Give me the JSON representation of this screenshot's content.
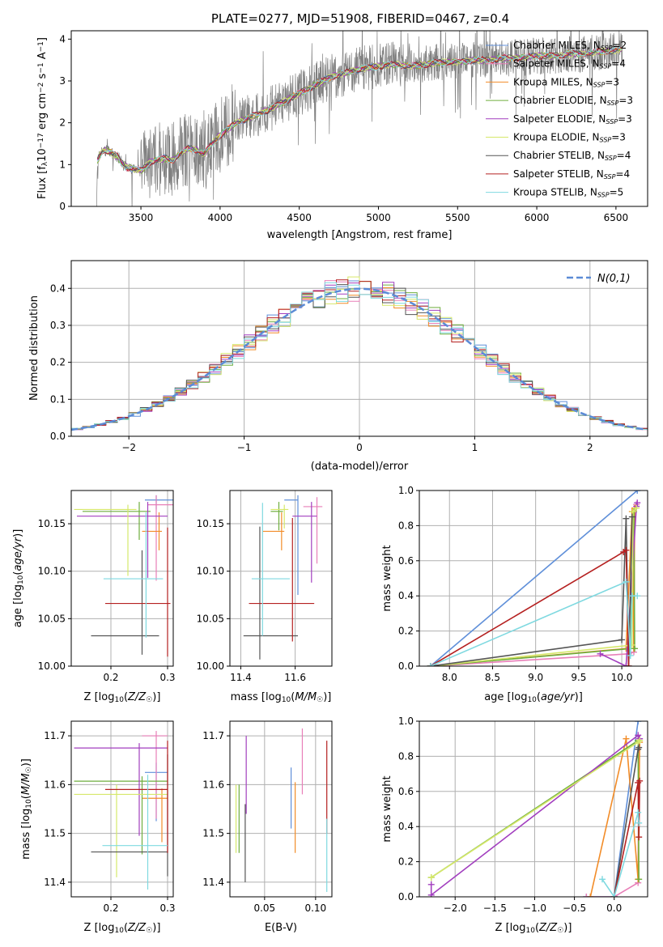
{
  "figure": {
    "title": "PLATE=0277, MJD=51908, FIBERID=0467, z=0.4",
    "series_colors": [
      "#5f8fd9",
      "#e87fb8",
      "#f28c28",
      "#6fae3e",
      "#a23fbf",
      "#d6e86a",
      "#555555",
      "#b52020",
      "#7fd9e0"
    ]
  },
  "chart_data": [
    {
      "id": "spectrum",
      "type": "line",
      "title": "PLATE=0277, MJD=51908, FIBERID=0467, z=0.4",
      "xlabel": "wavelength [Angstrom, rest frame]",
      "ylabel": "Flux [f_λ 10^-17 erg cm^-2 s^-1 A^-1]",
      "xlim": [
        3060,
        6700
      ],
      "ylim": [
        0,
        4.2
      ],
      "xticks": [
        3500,
        4000,
        4500,
        5000,
        5500,
        6000,
        6500
      ],
      "yticks": [
        0,
        1,
        2,
        3,
        4
      ],
      "grid": false,
      "legend_position": "top-right",
      "data_start": 3220,
      "data_end": 6540,
      "continuum": [
        [
          3220,
          0
        ],
        [
          3225,
          1.1
        ],
        [
          3260,
          1.35
        ],
        [
          3300,
          1.3
        ],
        [
          3350,
          1.2
        ],
        [
          3400,
          0.95
        ],
        [
          3450,
          0.9
        ],
        [
          3500,
          0.85
        ],
        [
          3550,
          1.05
        ],
        [
          3600,
          1.1
        ],
        [
          3650,
          1.15
        ],
        [
          3700,
          1.1
        ],
        [
          3800,
          1.4
        ],
        [
          3850,
          1.35
        ],
        [
          3900,
          1.25
        ],
        [
          3950,
          1.5
        ],
        [
          4000,
          1.7
        ],
        [
          4100,
          2.0
        ],
        [
          4200,
          2.15
        ],
        [
          4300,
          2.3
        ],
        [
          4400,
          2.5
        ],
        [
          4500,
          2.7
        ],
        [
          4600,
          2.9
        ],
        [
          4700,
          3.1
        ],
        [
          4800,
          3.2
        ],
        [
          4900,
          3.3
        ],
        [
          5000,
          3.35
        ],
        [
          5100,
          3.4
        ],
        [
          5200,
          3.35
        ],
        [
          5300,
          3.4
        ],
        [
          5400,
          3.45
        ],
        [
          5500,
          3.45
        ],
        [
          5600,
          3.5
        ],
        [
          5700,
          3.5
        ],
        [
          5800,
          3.55
        ],
        [
          5900,
          3.55
        ],
        [
          6000,
          3.6
        ],
        [
          6100,
          3.6
        ],
        [
          6200,
          3.65
        ],
        [
          6300,
          3.65
        ],
        [
          6400,
          3.7
        ],
        [
          6540,
          3.75
        ]
      ],
      "series": [
        {
          "name": "Chabrier MILES, N_SSP=2",
          "label_main": "Chabrier MILES, N",
          "label_sub": "SSP",
          "label_end": "=2"
        },
        {
          "name": "Salpeter MILES, N_SSP=4",
          "label_main": "Salpeter MILES, N",
          "label_sub": "SSP",
          "label_end": "=4"
        },
        {
          "name": "Kroupa MILES, N_SSP=3",
          "label_main": "Kroupa MILES, N",
          "label_sub": "SSP",
          "label_end": "=3"
        },
        {
          "name": "Chabrier ELODIE, N_SSP=3",
          "label_main": "Chabrier ELODIE, N",
          "label_sub": "SSP",
          "label_end": "=3"
        },
        {
          "name": "Salpeter ELODIE, N_SSP=3",
          "label_main": "Salpeter ELODIE, N",
          "label_sub": "SSP",
          "label_end": "=3"
        },
        {
          "name": "Kroupa ELODIE, N_SSP=3",
          "label_main": "Kroupa ELODIE, N",
          "label_sub": "SSP",
          "label_end": "=3"
        },
        {
          "name": "Chabrier STELIB, N_SSP=4",
          "label_main": "Chabrier STELIB, N",
          "label_sub": "SSP",
          "label_end": "=4"
        },
        {
          "name": "Salpeter STELIB, N_SSP=4",
          "label_main": "Salpeter STELIB, N",
          "label_sub": "SSP",
          "label_end": "=4"
        },
        {
          "name": "Kroupa STELIB, N_SSP=5",
          "label_main": "Kroupa STELIB, N",
          "label_sub": "SSP",
          "label_end": "=5"
        }
      ]
    },
    {
      "id": "residuals",
      "type": "histogram",
      "xlabel": "(data-model)/error",
      "ylabel": "Normed distribution",
      "xlim": [
        -2.5,
        2.5
      ],
      "ylim": [
        0,
        0.475
      ],
      "xticks": [
        -2,
        -1,
        0,
        1,
        2
      ],
      "yticks": [
        0.0,
        0.1,
        0.2,
        0.3,
        0.4
      ],
      "grid": true,
      "legend_position": "top-right",
      "legend": "N(0,1)",
      "bin_width": 0.1,
      "bins_start": -2.5
    },
    {
      "id": "age_vs_Z",
      "type": "errorbar",
      "xlabel": "Z [log10(Z/Z☉)]",
      "ylabel": "age [log10(age/yr)]",
      "xlim": [
        0.13,
        0.31
      ],
      "ylim": [
        10.0,
        10.185
      ],
      "xticks": [
        0.2,
        0.3
      ],
      "yticks": [
        10.0,
        10.05,
        10.1,
        10.15
      ],
      "grid": true,
      "points": [
        {
          "x": 0.28,
          "xerr": [
            0.02,
            0.04
          ],
          "y": 10.175,
          "yerr": [
            0.01,
            0.005
          ]
        },
        {
          "x": 0.28,
          "xerr": [
            0.015,
            0.035
          ],
          "y": 10.17,
          "yerr": [
            0.08,
            0.01
          ]
        },
        {
          "x": 0.285,
          "xerr": [
            0.03,
            0.005
          ],
          "y": 10.142,
          "yerr": [
            0.02,
            0.02
          ]
        },
        {
          "x": 0.25,
          "xerr": [
            0.1,
            0.02
          ],
          "y": 10.163,
          "yerr": [
            0.03,
            0.01
          ]
        },
        {
          "x": 0.265,
          "xerr": [
            0.125,
            0.035
          ],
          "y": 10.158,
          "yerr": [
            0.065,
            0.015
          ]
        },
        {
          "x": 0.23,
          "xerr": [
            0.095,
            0.015
          ],
          "y": 10.165,
          "yerr": [
            0.07,
            0.005
          ]
        },
        {
          "x": 0.255,
          "xerr": [
            0.09,
            0.03
          ],
          "y": 10.032,
          "yerr": [
            0.02,
            0.09
          ]
        },
        {
          "x": 0.3,
          "xerr": [
            0.11,
            0.005
          ],
          "y": 10.066,
          "yerr": [
            0.056,
            0.08
          ]
        },
        {
          "x": 0.262,
          "xerr": [
            0.075,
            0.03
          ],
          "y": 10.092,
          "yerr": [
            0.062,
            0.07
          ]
        }
      ]
    },
    {
      "id": "age_vs_mass",
      "type": "errorbar",
      "xlabel": "mass [log10(M/M☉)]",
      "ylabel": "",
      "xlim": [
        11.36,
        11.735
      ],
      "ylim": [
        10.0,
        10.185
      ],
      "xticks": [
        11.4,
        11.6
      ],
      "yticks": [
        10.0,
        10.05,
        10.1,
        10.15
      ],
      "grid": true,
      "points": [
        {
          "x": 11.61,
          "xerr": [
            0.05,
            0.0
          ],
          "y": 10.175,
          "yerr": [
            0.1,
            0.005
          ]
        },
        {
          "x": 11.68,
          "xerr": [
            0.05,
            0.02
          ],
          "y": 10.168,
          "yerr": [
            0.06,
            0.01
          ]
        },
        {
          "x": 11.55,
          "xerr": [
            0.07,
            0.01
          ],
          "y": 10.142,
          "yerr": [
            0.02,
            0.02
          ]
        },
        {
          "x": 11.54,
          "xerr": [
            0.03,
            0.015
          ],
          "y": 10.163,
          "yerr": [
            0.02,
            0.01
          ]
        },
        {
          "x": 11.66,
          "xerr": [
            0.07,
            0.02
          ],
          "y": 10.158,
          "yerr": [
            0.07,
            0.015
          ]
        },
        {
          "x": 11.56,
          "xerr": [
            0.05,
            0.015
          ],
          "y": 10.165,
          "yerr": [
            0.02,
            0.005
          ]
        },
        {
          "x": 11.47,
          "xerr": [
            0.06,
            0.14
          ],
          "y": 10.032,
          "yerr": [
            0.025,
            0.115
          ]
        },
        {
          "x": 11.59,
          "xerr": [
            0.16,
            0.08
          ],
          "y": 10.066,
          "yerr": [
            0.04,
            0.09
          ]
        },
        {
          "x": 11.48,
          "xerr": [
            0.04,
            0.1
          ],
          "y": 10.092,
          "yerr": [
            0.06,
            0.08
          ]
        }
      ]
    },
    {
      "id": "age_weights",
      "type": "line",
      "xlabel": "age [log10(age/yr)]",
      "ylabel": "mass weight",
      "xlim": [
        7.65,
        10.3
      ],
      "ylim": [
        0,
        1
      ],
      "xticks": [
        8.0,
        8.5,
        9.0,
        9.5,
        10.0
      ],
      "yticks": [
        0.0,
        0.2,
        0.4,
        0.6,
        0.8,
        1.0
      ],
      "grid": true,
      "series": [
        {
          "x": [
            7.78,
            10.18
          ],
          "y": [
            0.0,
            1.0
          ]
        },
        {
          "x": [
            7.78,
            10.08,
            10.14,
            10.15,
            10.17
          ],
          "y": [
            0.0,
            0.07,
            0.08,
            0.9,
            0.92
          ]
        },
        {
          "x": [
            7.78,
            10.05,
            10.12,
            10.14,
            10.15
          ],
          "y": [
            0.0,
            0.1,
            0.88,
            0.1,
            0.9
          ]
        },
        {
          "x": [
            7.78,
            10.1,
            10.14,
            10.15
          ],
          "y": [
            0.0,
            0.1,
            0.88,
            0.1
          ]
        },
        {
          "x": [
            9.75,
            10.05,
            10.17,
            10.18
          ],
          "y": [
            0.07,
            0.0,
            0.91,
            0.93
          ]
        },
        {
          "x": [
            7.78,
            10.12,
            10.13,
            10.17
          ],
          "y": [
            0.0,
            0.12,
            0.88,
            0.9
          ]
        },
        {
          "x": [
            7.78,
            10.0,
            10.05,
            10.08,
            10.12
          ],
          "y": [
            0.0,
            0.15,
            0.84,
            0.0,
            0.85
          ]
        },
        {
          "x": [
            7.78,
            10.02,
            10.05,
            10.08
          ],
          "y": [
            0.0,
            0.65,
            0.66,
            0.0
          ]
        },
        {
          "x": [
            7.78,
            10.05,
            10.1,
            10.12,
            10.18
          ],
          "y": [
            0.0,
            0.48,
            0.06,
            0.4,
            0.4
          ]
        }
      ]
    },
    {
      "id": "mass_vs_Z",
      "type": "errorbar",
      "xlabel": "Z [log10(Z/Z☉)]",
      "ylabel": "mass [log10(M/M☉)]",
      "xlim": [
        0.13,
        0.31
      ],
      "ylim": [
        11.37,
        11.73
      ],
      "xticks": [
        0.2,
        0.3
      ],
      "yticks": [
        11.4,
        11.5,
        11.6,
        11.7
      ],
      "grid": true,
      "points": [
        {
          "x": 0.28,
          "xerr": [
            0.02,
            0.02
          ],
          "y": 11.625,
          "yerr": [
            0.1,
            0.02
          ]
        },
        {
          "x": 0.28,
          "xerr": [
            0.025,
            0.02
          ],
          "y": 11.7,
          "yerr": [
            0.17,
            0.01
          ]
        },
        {
          "x": 0.29,
          "xerr": [
            0.035,
            0.01
          ],
          "y": 11.572,
          "yerr": [
            0.09,
            0.02
          ]
        },
        {
          "x": 0.255,
          "xerr": [
            0.12,
            0.045
          ],
          "y": 11.607,
          "yerr": [
            0.15,
            0.01
          ]
        },
        {
          "x": 0.25,
          "xerr": [
            0.115,
            0.05
          ],
          "y": 11.675,
          "yerr": [
            0.18,
            0.01
          ]
        },
        {
          "x": 0.21,
          "xerr": [
            0.075,
            0.09
          ],
          "y": 11.58,
          "yerr": [
            0.17,
            0.02
          ]
        },
        {
          "x": 0.3,
          "xerr": [
            0.135,
            0.0
          ],
          "y": 11.462,
          "yerr": [
            0.05,
            0.2
          ]
        },
        {
          "x": 0.3,
          "xerr": [
            0.11,
            0.0
          ],
          "y": 11.59,
          "yerr": [
            0.13,
            0.1
          ]
        },
        {
          "x": 0.265,
          "xerr": [
            0.08,
            0.035
          ],
          "y": 11.475,
          "yerr": [
            0.09,
            0.145
          ]
        }
      ]
    },
    {
      "id": "mass_vs_ebv",
      "type": "errorbar",
      "xlabel": "E(B-V)",
      "ylabel": "",
      "xlim": [
        0.016,
        0.116
      ],
      "ylim": [
        11.37,
        11.73
      ],
      "xticks": [
        0.05,
        0.1
      ],
      "yticks": [
        11.4,
        11.5,
        11.6,
        11.7
      ],
      "grid": true,
      "points": [
        {
          "x": 0.076,
          "y": 11.56,
          "yerr": [
            0.05,
            0.075
          ]
        },
        {
          "x": 0.087,
          "y": 11.64,
          "yerr": [
            0.06,
            0.075
          ]
        },
        {
          "x": 0.08,
          "y": 11.53,
          "yerr": [
            0.07,
            0.075
          ]
        },
        {
          "x": 0.025,
          "y": 11.52,
          "yerr": [
            0.06,
            0.08
          ]
        },
        {
          "x": 0.032,
          "y": 11.62,
          "yerr": [
            0.08,
            0.08
          ]
        },
        {
          "x": 0.022,
          "y": 11.52,
          "yerr": [
            0.06,
            0.08
          ]
        },
        {
          "x": 0.031,
          "y": 11.5,
          "yerr": [
            0.1,
            0.06
          ]
        },
        {
          "x": 0.111,
          "y": 11.6,
          "yerr": [
            0.1,
            0.09
          ]
        },
        {
          "x": 0.111,
          "y": 11.45,
          "yerr": [
            0.07,
            0.08
          ]
        }
      ]
    },
    {
      "id": "Z_weights",
      "type": "line",
      "xlabel": "Z [log10(Z/Z☉)]",
      "ylabel": "mass weight",
      "xlim": [
        -2.45,
        0.42
      ],
      "ylim": [
        0,
        1
      ],
      "xticks": [
        -2.0,
        -1.5,
        -1.0,
        -0.5,
        0.0
      ],
      "yticks": [
        0.0,
        0.2,
        0.4,
        0.6,
        0.8,
        1.0
      ],
      "grid": true,
      "series": [
        {
          "x": [
            -0.35,
            0.0,
            0.3
          ],
          "y": [
            0.0,
            0.0,
            1.0
          ]
        },
        {
          "x": [
            -0.35,
            0.0,
            0.3,
            0.31
          ],
          "y": [
            0.0,
            0.0,
            0.08,
            0.9
          ]
        },
        {
          "x": [
            -0.3,
            0.15,
            0.3,
            0.32
          ],
          "y": [
            0.0,
            0.9,
            0.1,
            0.88
          ]
        },
        {
          "x": [
            -2.3,
            0.3,
            0.31
          ],
          "y": [
            0.11,
            0.89,
            0.1
          ]
        },
        {
          "x": [
            -2.3,
            -2.3,
            0.3,
            0.32
          ],
          "y": [
            0.07,
            0.01,
            0.92,
            0.9
          ]
        },
        {
          "x": [
            -2.3,
            0.3,
            0.32
          ],
          "y": [
            0.11,
            0.88,
            0.89
          ]
        },
        {
          "x": [
            0.0,
            0.3,
            0.31
          ],
          "y": [
            0.0,
            0.84,
            0.85
          ]
        },
        {
          "x": [
            0.0,
            0.3,
            0.31,
            0.32
          ],
          "y": [
            0.0,
            0.65,
            0.34,
            0.66
          ]
        },
        {
          "x": [
            -0.15,
            0.0,
            0.3,
            0.31
          ],
          "y": [
            0.1,
            0.0,
            0.48,
            0.42
          ]
        }
      ]
    }
  ]
}
